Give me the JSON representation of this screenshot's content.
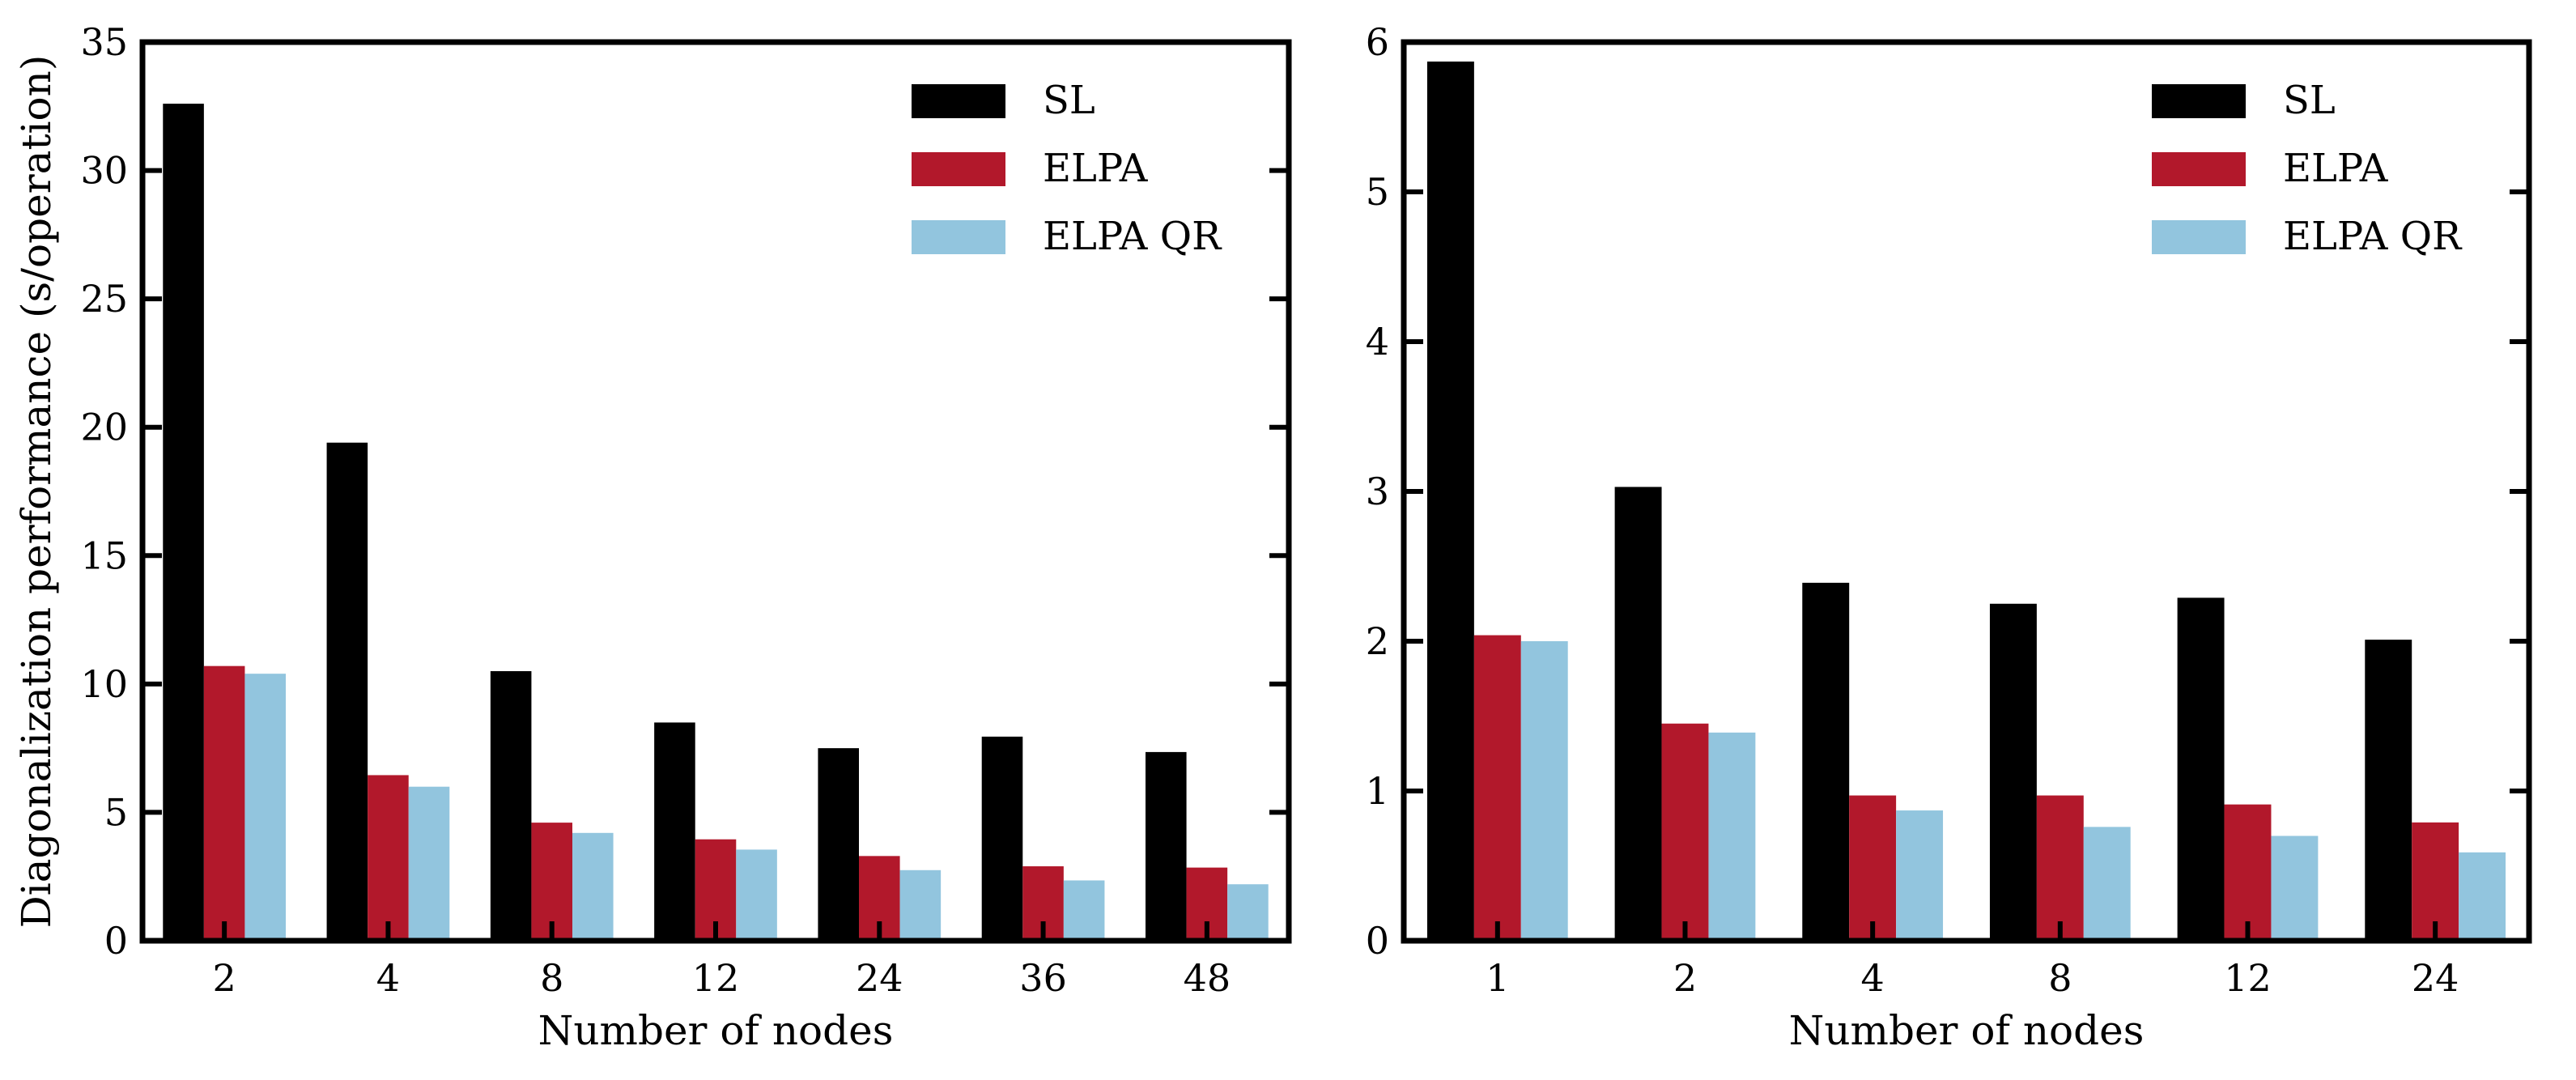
{
  "chart_data": [
    {
      "type": "bar",
      "categories": [
        "2",
        "4",
        "8",
        "12",
        "24",
        "36",
        "48"
      ],
      "series": [
        {
          "name": "SL",
          "values": [
            32.6,
            19.4,
            10.5,
            8.5,
            7.5,
            7.95,
            7.35
          ]
        },
        {
          "name": "ELPA",
          "values": [
            10.7,
            6.45,
            4.6,
            3.95,
            3.3,
            2.9,
            2.85
          ]
        },
        {
          "name": "ELPA QR",
          "values": [
            10.4,
            6.0,
            4.2,
            3.55,
            2.75,
            2.35,
            2.2
          ]
        }
      ],
      "xlabel": "Number of nodes",
      "ylabel": "Diagonalization performance (s/operation)",
      "ylim": [
        0,
        35
      ],
      "yticks": [
        "0",
        "5",
        "10",
        "15",
        "20",
        "25",
        "30",
        "35"
      ],
      "legend_position": "top-right",
      "grid": false
    },
    {
      "type": "bar",
      "categories": [
        "1",
        "2",
        "4",
        "8",
        "12",
        "24"
      ],
      "series": [
        {
          "name": "SL",
          "values": [
            5.87,
            3.03,
            2.39,
            2.25,
            2.29,
            2.01
          ]
        },
        {
          "name": "ELPA",
          "values": [
            2.04,
            1.45,
            0.97,
            0.97,
            0.91,
            0.79
          ]
        },
        {
          "name": "ELPA QR",
          "values": [
            2.0,
            1.39,
            0.87,
            0.76,
            0.7,
            0.59
          ]
        }
      ],
      "xlabel": "Number of nodes",
      "ylabel": "",
      "ylim": [
        0,
        6
      ],
      "yticks": [
        "0",
        "1",
        "2",
        "3",
        "4",
        "5",
        "6"
      ],
      "legend_position": "top-right",
      "grid": false
    }
  ],
  "colors": {
    "SL": "#000000",
    "ELPA": "#b2182b",
    "ELPA QR": "#92c5de"
  }
}
